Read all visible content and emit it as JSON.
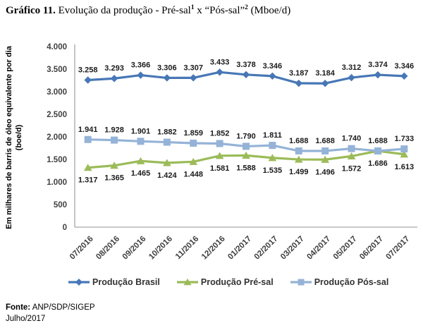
{
  "title": {
    "bold": "Gráfico 11.",
    "text1": " Evolução da produção - Pré-sal",
    "sup1": "1",
    "text2": " x “Pós-sal”",
    "sup2": "2",
    "text3": " (Mboe/d)"
  },
  "chart_data": {
    "type": "line",
    "title": "Evolução da produção - Pré-sal x Pós-sal (Mboe/d)",
    "xlabel": "",
    "ylabel": "Em milhares de barris de óleo equivalente por dia (boe/d)",
    "ylim": [
      0,
      4000
    ],
    "grid": false,
    "legend_position": "bottom",
    "categories": [
      "07/2016",
      "08/2016",
      "09/2016",
      "10/2016",
      "11/2016",
      "12/2016",
      "01/2017",
      "02/2017",
      "03/2017",
      "04/2017",
      "05/2017",
      "06/2017",
      "07/2017"
    ],
    "yticks": {
      "values": [
        0,
        500,
        1000,
        1500,
        2000,
        2500,
        3000,
        3500,
        4000
      ],
      "labels": [
        "0",
        "500",
        "1.000",
        "1.500",
        "2.000",
        "2.500",
        "3.000",
        "3.500",
        "4.000"
      ]
    },
    "series": [
      {
        "name": "Produção Brasil",
        "color": "#4777b6",
        "marker": "diamond",
        "label_position": "above",
        "values": [
          3258,
          3293,
          3366,
          3306,
          3307,
          3433,
          3378,
          3346,
          3187,
          3184,
          3312,
          3374,
          3346
        ],
        "labels": [
          "3.258",
          "3.293",
          "3.366",
          "3.306",
          "3.307",
          "3.433",
          "3.378",
          "3.346",
          "3.187",
          "3.184",
          "3.312",
          "3.374",
          "3.346"
        ]
      },
      {
        "name": "Produção Pré-sal",
        "color": "#9bbb59",
        "marker": "triangle",
        "label_position": "below",
        "values": [
          1317,
          1365,
          1465,
          1424,
          1448,
          1581,
          1588,
          1535,
          1499,
          1496,
          1572,
          1686,
          1613
        ],
        "labels": [
          "1.317",
          "1.365",
          "1.465",
          "1.424",
          "1.448",
          "1.581",
          "1.588",
          "1.535",
          "1.499",
          "1.496",
          "1.572",
          "1.686",
          "1.613"
        ]
      },
      {
        "name": "Produção Pós-sal",
        "color": "#95b3d7",
        "marker": "square",
        "label_position": "above",
        "values": [
          1941,
          1928,
          1901,
          1882,
          1859,
          1852,
          1790,
          1811,
          1688,
          1688,
          1740,
          1688,
          1733
        ],
        "labels": [
          "1.941",
          "1.928",
          "1.901",
          "1.882",
          "1.859",
          "1.852",
          "1.790",
          "1.811",
          "1.688",
          "1.688",
          "1.740",
          "1.688",
          "1.733"
        ]
      }
    ]
  },
  "colors": {
    "axis_line": "#a6a6a6",
    "tick_text": "#404040",
    "data_label_text": "#1a1a1a"
  },
  "footer": {
    "source_bold": "Fonte:",
    "source_rest": " ANP/SDP/SIGEP",
    "date": "Julho/2017"
  }
}
